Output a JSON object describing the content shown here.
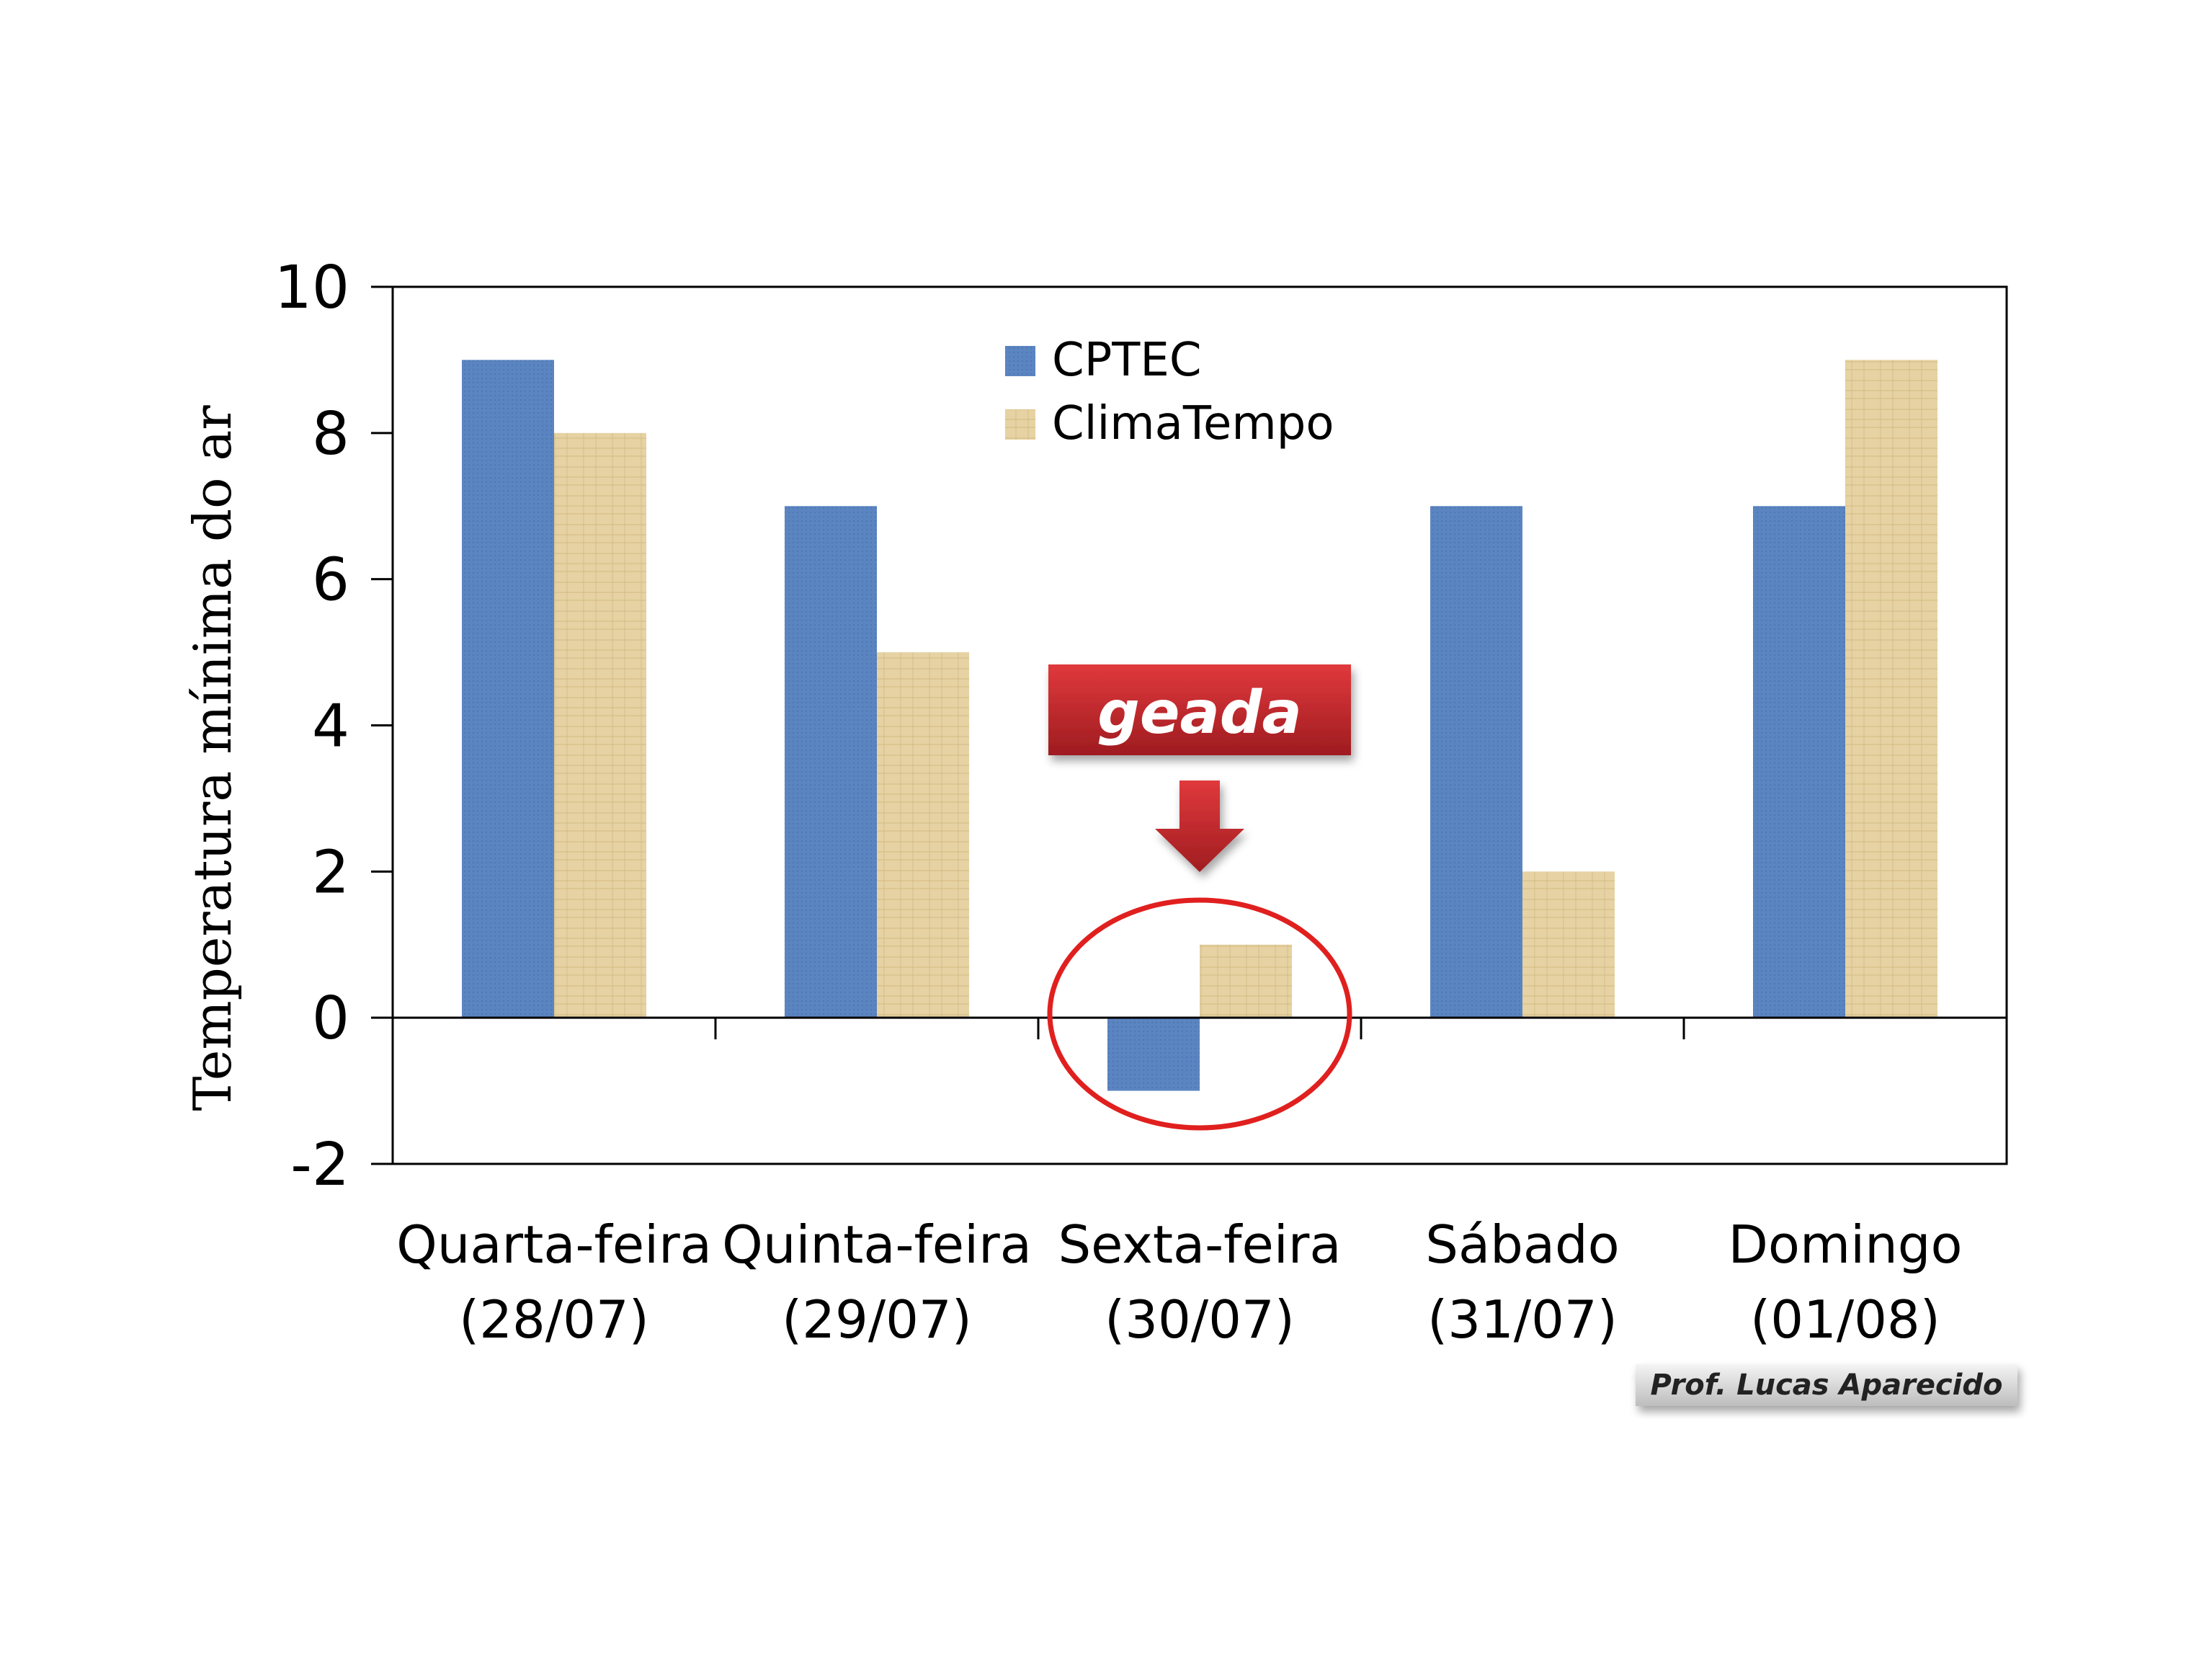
{
  "chart_data": {
    "type": "bar",
    "categories": [
      [
        "Quarta-feira",
        "(28/07)"
      ],
      [
        "Quinta-feira",
        "(29/07)"
      ],
      [
        "Sexta-feira",
        "(30/07)"
      ],
      [
        "Sábado",
        "(31/07)"
      ],
      [
        "Domingo",
        "(01/08)"
      ]
    ],
    "series": [
      {
        "name": "CPTEC",
        "values": [
          9,
          7,
          -1,
          7,
          7
        ],
        "color": "#5b85c1"
      },
      {
        "name": "ClimaTempo",
        "values": [
          8,
          5,
          1,
          2,
          9
        ],
        "color": "#e6d2a3"
      }
    ],
    "ylabel": "Temperatura mínima do ar",
    "ylim": [
      -2,
      10
    ],
    "yticks": [
      -2,
      0,
      2,
      4,
      6,
      8,
      10
    ],
    "grid": false,
    "legend": "top-center",
    "annotation": {
      "text": "geada",
      "category_index": 2,
      "box_color": "#c0282d",
      "circle_color": "#e0201f",
      "arrow_color": "#c0282d"
    }
  },
  "credit": "Prof. Lucas Aparecido"
}
